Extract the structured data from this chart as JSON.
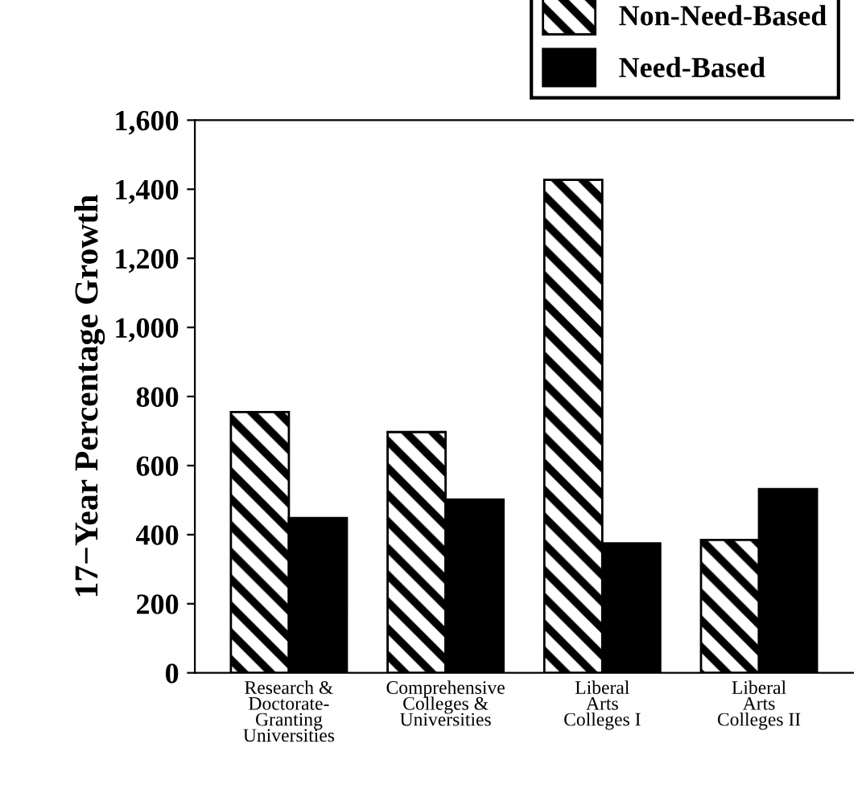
{
  "chart_data": {
    "type": "bar",
    "categories": [
      "Research &\nDoctorate-\nGranting\nUniversities",
      "Comprehensive\nColleges &\nUniversities",
      "Liberal\nArts\nColleges I",
      "Liberal\nArts\nColleges II"
    ],
    "series": [
      {
        "name": "Non-Need-Based",
        "color": "#000000",
        "values": [
          755,
          697,
          1427,
          385
        ]
      },
      {
        "name": "Need-Based",
        "color": "#000000",
        "values": [
          448,
          502,
          375,
          532
        ]
      }
    ],
    "ylabel": "17−Year Percentage Growth",
    "ylim": [
      0,
      1600
    ],
    "yticks": [
      {
        "value": 0,
        "label": "0"
      },
      {
        "value": 200,
        "label": "200"
      },
      {
        "value": 400,
        "label": "400"
      },
      {
        "value": 600,
        "label": "600"
      },
      {
        "value": 800,
        "label": "800"
      },
      {
        "value": 1000,
        "label": "1,000"
      },
      {
        "value": 1200,
        "label": "1,200"
      },
      {
        "value": 1400,
        "label": "1,400"
      },
      {
        "value": 1600,
        "label": "1,600"
      }
    ],
    "grid": false,
    "legend": "top right"
  }
}
